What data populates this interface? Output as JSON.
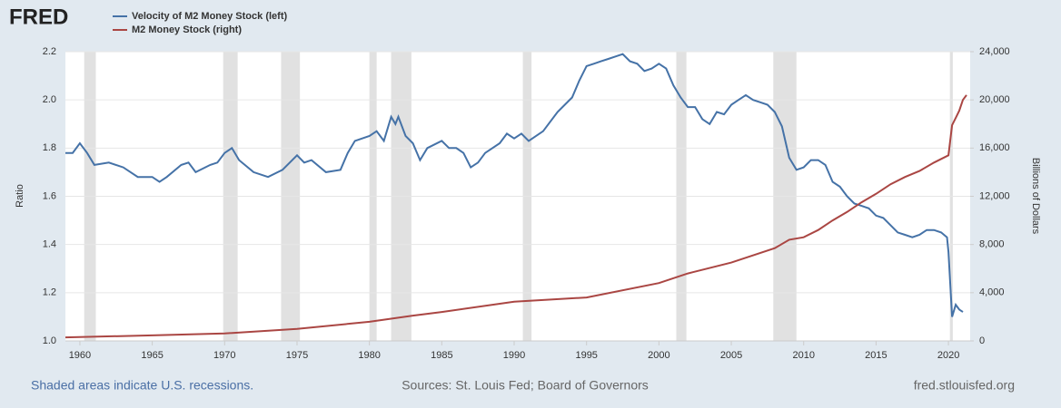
{
  "chart_data": {
    "type": "line",
    "logo": "FRED",
    "source": "Sources: St. Louis Fed; Board of Governors",
    "note": "Shaded areas indicate U.S. recessions.",
    "site": "fred.stlouisfed.org",
    "ylabel": "Ratio",
    "y2label": "Billions of Dollars",
    "xlim": [
      1959,
      2021.5
    ],
    "xticks": [
      1960,
      1965,
      1970,
      1975,
      1980,
      1985,
      1990,
      1995,
      2000,
      2005,
      2010,
      2015,
      2020
    ],
    "ylim": [
      1.0,
      2.2
    ],
    "yticks": [
      {
        "value": 1.0,
        "label": "1.0"
      },
      1.2,
      1.4,
      1.6,
      1.8,
      {
        "value": 2.0,
        "label": "2.0"
      },
      2.2
    ],
    "y2lim": [
      0,
      24000
    ],
    "y2ticks": [
      0,
      {
        "value": 4000,
        "label": "4,000"
      },
      {
        "value": 8000,
        "label": "8,000"
      },
      {
        "value": 12000,
        "label": "12,000"
      },
      {
        "value": 16000,
        "label": "16,000"
      },
      {
        "value": 20000,
        "label": "20,000"
      },
      {
        "value": 24000,
        "label": "24,000"
      }
    ],
    "grid": true,
    "recessions": [
      [
        1960.3,
        1961.1
      ],
      [
        1969.9,
        1970.9
      ],
      [
        1973.9,
        1975.2
      ],
      [
        1980.0,
        1980.5
      ],
      [
        1981.5,
        1982.9
      ],
      [
        1990.6,
        1991.2
      ],
      [
        2001.2,
        2001.9
      ],
      [
        2007.9,
        2009.5
      ],
      [
        2020.1,
        2020.3
      ]
    ],
    "series": [
      {
        "name": "Velocity of M2 Money Stock (left)",
        "color": "#4572a7",
        "x": [
          1959,
          1959.5,
          1960,
          1960.5,
          1961,
          1962,
          1963,
          1964,
          1965,
          1965.5,
          1966,
          1967,
          1967.5,
          1968,
          1969,
          1969.5,
          1970,
          1970.5,
          1971,
          1972,
          1973,
          1974,
          1975,
          1975.5,
          1976,
          1977,
          1978,
          1978.5,
          1979,
          1980,
          1980.5,
          1981,
          1981.5,
          1981.8,
          1982,
          1982.5,
          1983,
          1983.5,
          1984,
          1985,
          1985.5,
          1986,
          1986.5,
          1987,
          1987.5,
          1988,
          1989,
          1989.5,
          1990,
          1990.5,
          1991,
          1992,
          1993,
          1994,
          1994.5,
          1995,
          1995.5,
          1996,
          1996.5,
          1997,
          1997.5,
          1998,
          1998.5,
          1999,
          1999.5,
          2000,
          2000.5,
          2001,
          2001.5,
          2002,
          2002.5,
          2003,
          2003.5,
          2004,
          2004.5,
          2005,
          2005.5,
          2006,
          2006.5,
          2007,
          2007.5,
          2008,
          2008.5,
          2009,
          2009.5,
          2010,
          2010.5,
          2011,
          2011.5,
          2012,
          2012.5,
          2013,
          2013.5,
          2014,
          2014.5,
          2015,
          2015.5,
          2016,
          2016.5,
          2017,
          2017.5,
          2018,
          2018.5,
          2019,
          2019.5,
          2019.9,
          2020,
          2020.25,
          2020.5,
          2020.75,
          2021
        ],
        "values": [
          1.78,
          1.78,
          1.82,
          1.78,
          1.73,
          1.74,
          1.72,
          1.68,
          1.68,
          1.66,
          1.68,
          1.73,
          1.74,
          1.7,
          1.73,
          1.74,
          1.78,
          1.8,
          1.75,
          1.7,
          1.68,
          1.71,
          1.77,
          1.74,
          1.75,
          1.7,
          1.71,
          1.78,
          1.83,
          1.85,
          1.87,
          1.83,
          1.93,
          1.9,
          1.93,
          1.85,
          1.82,
          1.75,
          1.8,
          1.83,
          1.8,
          1.8,
          1.78,
          1.72,
          1.74,
          1.78,
          1.82,
          1.86,
          1.84,
          1.86,
          1.83,
          1.87,
          1.95,
          2.01,
          2.08,
          2.14,
          2.15,
          2.16,
          2.17,
          2.18,
          2.19,
          2.16,
          2.15,
          2.12,
          2.13,
          2.15,
          2.13,
          2.06,
          2.01,
          1.97,
          1.97,
          1.92,
          1.9,
          1.95,
          1.94,
          1.98,
          2.0,
          2.02,
          2.0,
          1.99,
          1.98,
          1.95,
          1.89,
          1.76,
          1.71,
          1.72,
          1.75,
          1.75,
          1.73,
          1.66,
          1.64,
          1.6,
          1.57,
          1.56,
          1.55,
          1.52,
          1.51,
          1.48,
          1.45,
          1.44,
          1.43,
          1.44,
          1.46,
          1.46,
          1.45,
          1.43,
          1.37,
          1.1,
          1.15,
          1.13,
          1.12
        ]
      },
      {
        "name": "M2 Money Stock (right)",
        "color": "#aa4643",
        "axis": "y2",
        "x": [
          1959,
          1965,
          1970,
          1975,
          1980,
          1983,
          1985,
          1990,
          1995,
          2000,
          2002,
          2005,
          2008,
          2009,
          2010,
          2011,
          2012,
          2013,
          2014,
          2015,
          2016,
          2017,
          2018,
          2019,
          2020,
          2020.25,
          2020.5,
          2020.75,
          2021,
          2021.25
        ],
        "values": [
          290,
          460,
          620,
          1000,
          1590,
          2100,
          2400,
          3250,
          3600,
          4800,
          5600,
          6500,
          7700,
          8400,
          8600,
          9200,
          10000,
          10700,
          11500,
          12200,
          13000,
          13600,
          14100,
          14800,
          15400,
          17900,
          18500,
          19100,
          20000,
          20400
        ]
      }
    ]
  }
}
